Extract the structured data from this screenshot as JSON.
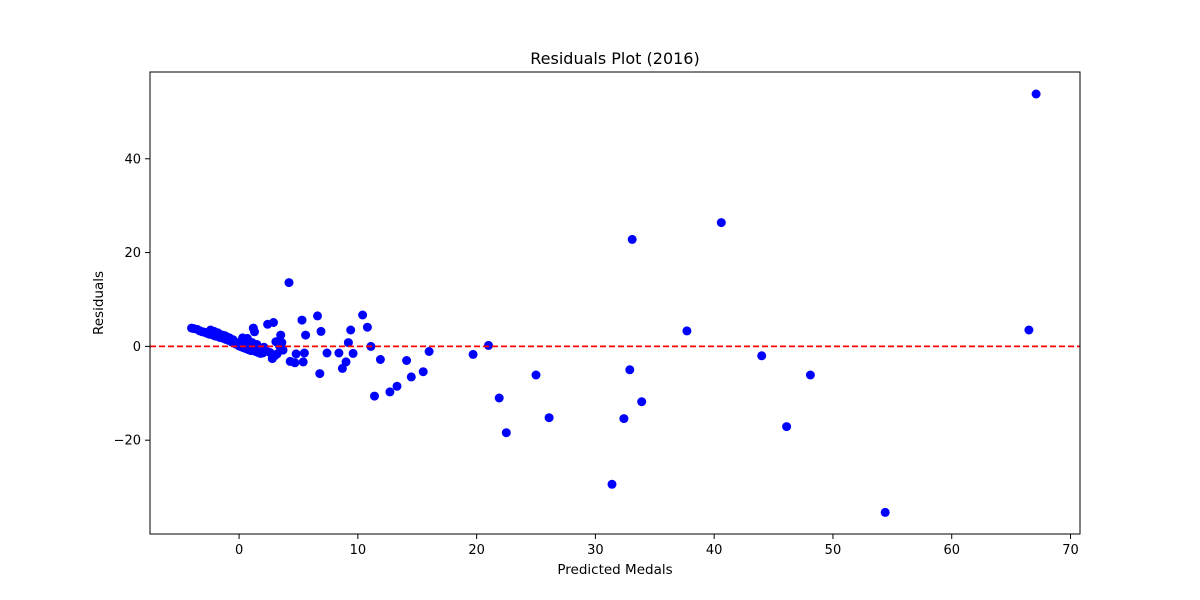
{
  "chart_data": {
    "type": "scatter",
    "title": "Residuals Plot (2016)",
    "xlabel": "Predicted Medals",
    "ylabel": "Residuals",
    "xlim": [
      -7.5,
      70.8
    ],
    "ylim": [
      -40.0,
      58.5
    ],
    "xticks": [
      0,
      10,
      20,
      30,
      40,
      50,
      60,
      70
    ],
    "yticks": [
      -20,
      0,
      20,
      40
    ],
    "xtick_labels": [
      "0",
      "10",
      "20",
      "30",
      "40",
      "50",
      "60",
      "70"
    ],
    "ytick_labels": [
      "−20",
      "0",
      "20",
      "40"
    ],
    "grid": false,
    "marker_color": "#0000ff",
    "reference_line": {
      "y": 0,
      "color": "#ff0000",
      "style": "dashed"
    },
    "points": [
      [
        -4.0,
        3.9
      ],
      [
        -3.8,
        3.8
      ],
      [
        -3.5,
        3.6
      ],
      [
        -3.3,
        3.3
      ],
      [
        -3.1,
        3.1
      ],
      [
        -2.9,
        3.0
      ],
      [
        -2.7,
        2.8
      ],
      [
        -2.5,
        2.6
      ],
      [
        -2.4,
        3.5
      ],
      [
        -2.2,
        2.4
      ],
      [
        -2.1,
        3.2
      ],
      [
        -2.0,
        2.2
      ],
      [
        -1.8,
        2.9
      ],
      [
        -1.7,
        2.0
      ],
      [
        -1.6,
        1.9
      ],
      [
        -1.5,
        2.5
      ],
      [
        -1.3,
        1.7
      ],
      [
        -1.2,
        2.3
      ],
      [
        -1.1,
        1.5
      ],
      [
        -1.0,
        2.0
      ],
      [
        -0.9,
        1.3
      ],
      [
        -0.8,
        1.8
      ],
      [
        -0.7,
        1.1
      ],
      [
        -0.6,
        0.9
      ],
      [
        -0.5,
        1.4
      ],
      [
        -0.4,
        0.7
      ],
      [
        -0.3,
        0.5
      ],
      [
        -0.2,
        0.8
      ],
      [
        -0.1,
        0.3
      ],
      [
        0.0,
        0.1
      ],
      [
        0.1,
        0.6
      ],
      [
        0.2,
        -0.1
      ],
      [
        0.3,
        1.8
      ],
      [
        0.4,
        -0.3
      ],
      [
        0.5,
        1.2
      ],
      [
        0.6,
        -0.5
      ],
      [
        0.7,
        1.7
      ],
      [
        0.8,
        -0.7
      ],
      [
        0.9,
        0.2
      ],
      [
        1.0,
        -0.9
      ],
      [
        1.1,
        0.8
      ],
      [
        1.2,
        3.9
      ],
      [
        1.3,
        3.1
      ],
      [
        1.4,
        -1.1
      ],
      [
        1.5,
        0.4
      ],
      [
        1.6,
        -1.3
      ],
      [
        1.8,
        -1.5
      ],
      [
        2.0,
        -1.4
      ],
      [
        2.1,
        -0.2
      ],
      [
        2.3,
        -1.0
      ],
      [
        2.4,
        4.7
      ],
      [
        2.6,
        -1.3
      ],
      [
        2.8,
        -2.6
      ],
      [
        2.9,
        5.1
      ],
      [
        3.0,
        -2.0
      ],
      [
        3.1,
        1.0
      ],
      [
        3.2,
        -1.6
      ],
      [
        3.4,
        0.1
      ],
      [
        3.5,
        2.4
      ],
      [
        3.6,
        0.8
      ],
      [
        3.7,
        -0.8
      ],
      [
        4.2,
        13.6
      ],
      [
        4.3,
        -3.2
      ],
      [
        4.7,
        -3.5
      ],
      [
        4.8,
        -1.6
      ],
      [
        5.3,
        5.6
      ],
      [
        5.4,
        -3.3
      ],
      [
        5.5,
        -1.4
      ],
      [
        5.6,
        2.4
      ],
      [
        6.6,
        6.5
      ],
      [
        6.8,
        -5.8
      ],
      [
        6.9,
        3.2
      ],
      [
        7.4,
        -1.4
      ],
      [
        8.4,
        -1.4
      ],
      [
        8.7,
        -4.7
      ],
      [
        9.0,
        -3.3
      ],
      [
        9.2,
        0.8
      ],
      [
        9.4,
        3.5
      ],
      [
        9.6,
        -1.5
      ],
      [
        10.4,
        6.7
      ],
      [
        10.8,
        4.1
      ],
      [
        11.1,
        0.0
      ],
      [
        11.4,
        -10.6
      ],
      [
        11.9,
        -2.8
      ],
      [
        12.7,
        -9.7
      ],
      [
        13.3,
        -8.5
      ],
      [
        14.1,
        -3.0
      ],
      [
        14.5,
        -6.5
      ],
      [
        15.5,
        -5.4
      ],
      [
        16.0,
        -1.1
      ],
      [
        19.7,
        -1.7
      ],
      [
        21.0,
        0.2
      ],
      [
        21.9,
        -11.0
      ],
      [
        22.5,
        -18.4
      ],
      [
        25.0,
        -6.1
      ],
      [
        26.1,
        -15.2
      ],
      [
        31.4,
        -29.4
      ],
      [
        32.4,
        -15.4
      ],
      [
        32.9,
        -5.0
      ],
      [
        33.1,
        22.8
      ],
      [
        33.9,
        -11.8
      ],
      [
        37.7,
        3.3
      ],
      [
        40.6,
        26.4
      ],
      [
        44.0,
        -2.0
      ],
      [
        46.1,
        -17.1
      ],
      [
        48.1,
        -6.1
      ],
      [
        54.4,
        -35.4
      ],
      [
        66.5,
        3.5
      ],
      [
        67.1,
        53.8
      ]
    ]
  }
}
